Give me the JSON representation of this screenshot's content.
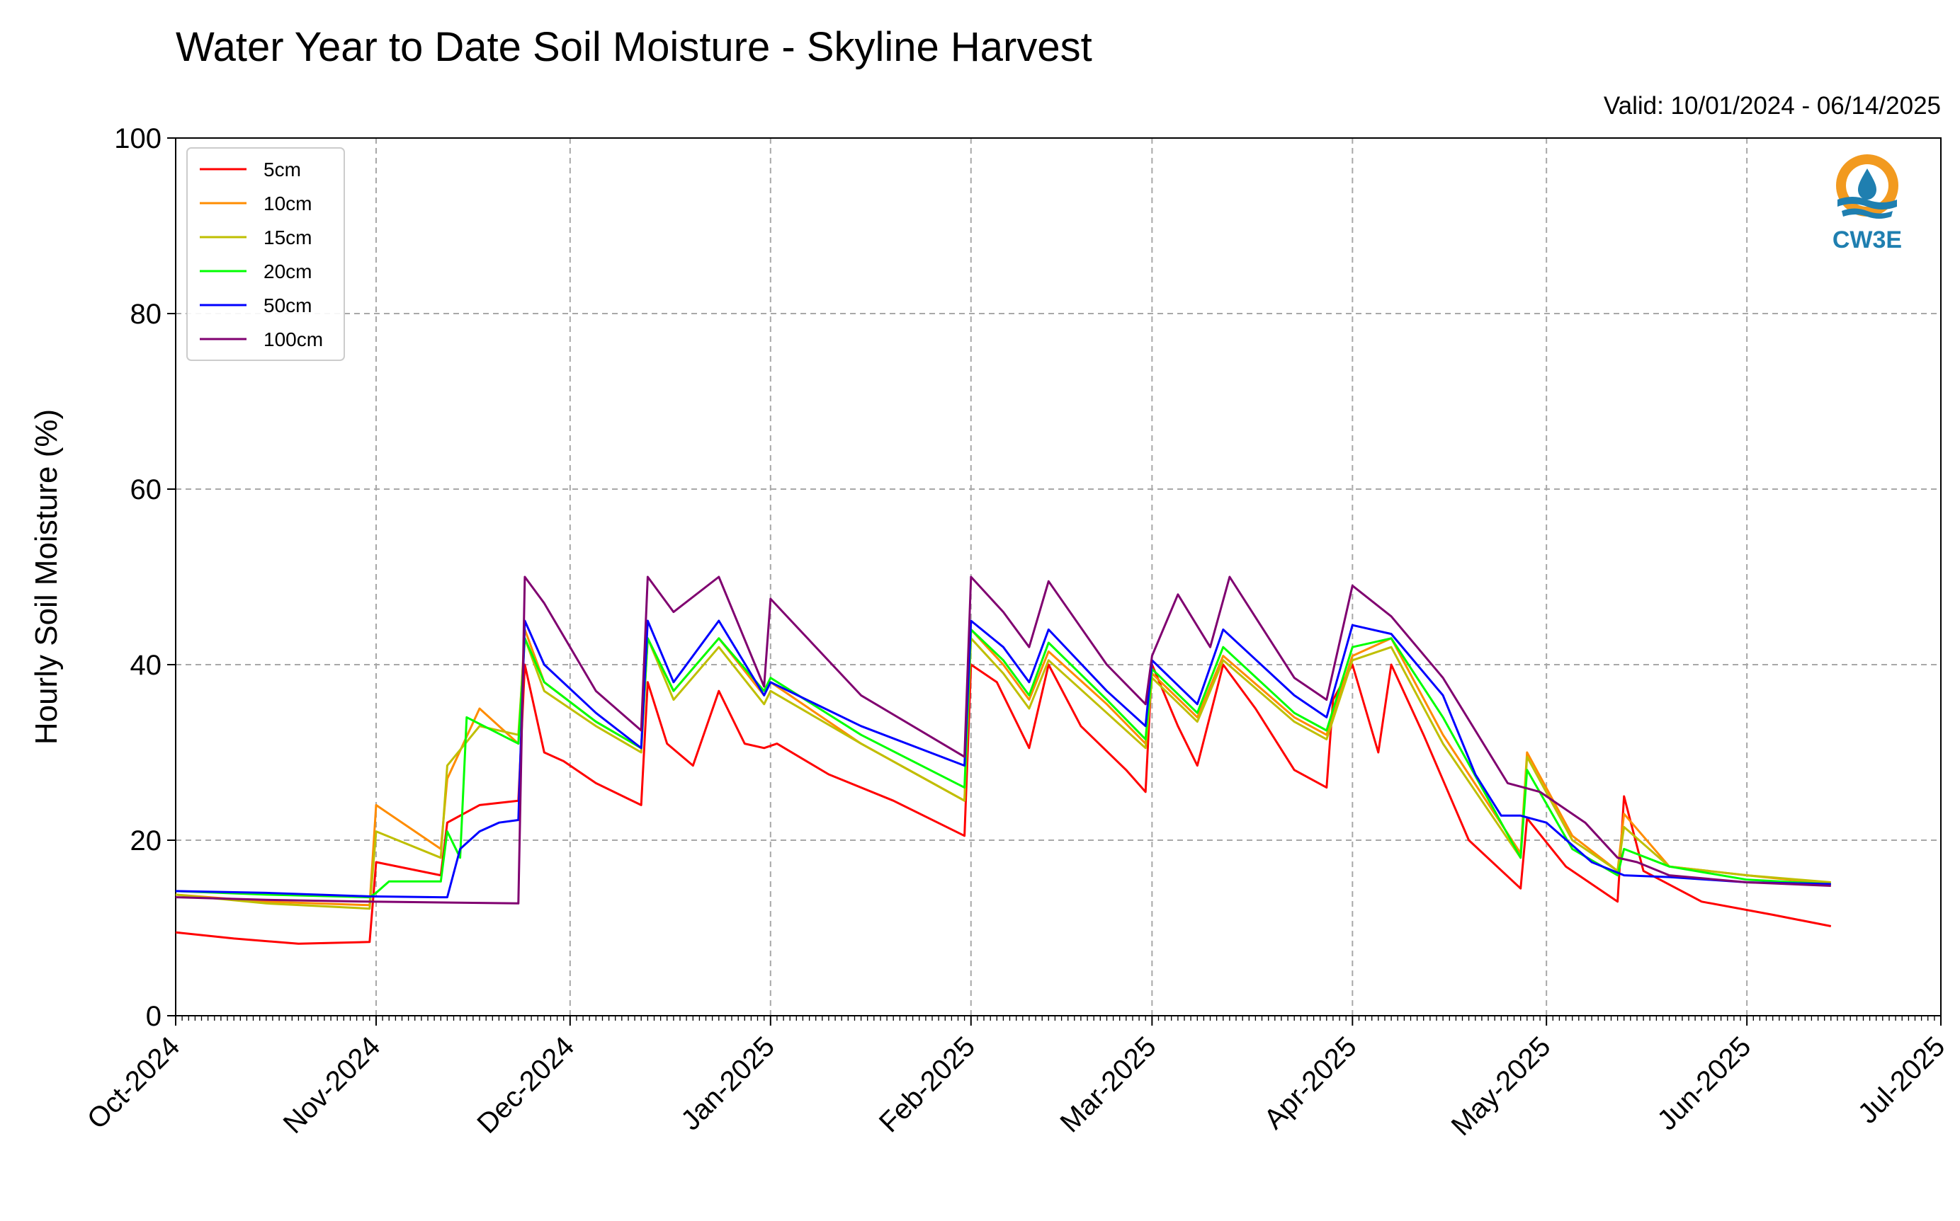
{
  "chart_data": {
    "type": "line",
    "title": "Water Year to Date Soil Moisture - Skyline Harvest",
    "subtitle": "Valid: 10/01/2024 - 06/14/2025",
    "xlabel": "",
    "ylabel": "Hourly Soil Moisture (%)",
    "ylim": [
      0,
      100
    ],
    "xlim": [
      "2024-10-01",
      "2025-07-01"
    ],
    "yticks": [
      0,
      20,
      40,
      60,
      80,
      100
    ],
    "xticks": [
      {
        "date": "2024-10-01",
        "label": "Oct-2024"
      },
      {
        "date": "2024-11-01",
        "label": "Nov-2024"
      },
      {
        "date": "2024-12-01",
        "label": "Dec-2024"
      },
      {
        "date": "2025-01-01",
        "label": "Jan-2025"
      },
      {
        "date": "2025-02-01",
        "label": "Feb-2025"
      },
      {
        "date": "2025-03-01",
        "label": "Mar-2025"
      },
      {
        "date": "2025-04-01",
        "label": "Apr-2025"
      },
      {
        "date": "2025-05-01",
        "label": "May-2025"
      },
      {
        "date": "2025-06-01",
        "label": "Jun-2025"
      },
      {
        "date": "2025-07-01",
        "label": "Jul-2025"
      }
    ],
    "grid": true,
    "legend": "top-left",
    "logo": "CW3E",
    "series": [
      {
        "name": "5cm",
        "color": "#ff0000",
        "points": [
          [
            "2024-10-01",
            9.5
          ],
          [
            "2024-10-10",
            8.8
          ],
          [
            "2024-10-20",
            8.2
          ],
          [
            "2024-10-31",
            8.4
          ],
          [
            "2024-11-01",
            17.5
          ],
          [
            "2024-11-11",
            16.0
          ],
          [
            "2024-11-12",
            22.0
          ],
          [
            "2024-11-17",
            24.0
          ],
          [
            "2024-11-23",
            24.5
          ],
          [
            "2024-11-24",
            40.0
          ],
          [
            "2024-11-27",
            30.0
          ],
          [
            "2024-11-30",
            29.0
          ],
          [
            "2024-12-05",
            26.5
          ],
          [
            "2024-12-12",
            24.0
          ],
          [
            "2024-12-13",
            38.0
          ],
          [
            "2024-12-16",
            31.0
          ],
          [
            "2024-12-20",
            28.5
          ],
          [
            "2024-12-24",
            37.0
          ],
          [
            "2024-12-28",
            31.0
          ],
          [
            "2024-12-31",
            30.5
          ],
          [
            "2025-01-02",
            31.0
          ],
          [
            "2025-01-10",
            27.5
          ],
          [
            "2025-01-20",
            24.5
          ],
          [
            "2025-01-31",
            20.5
          ],
          [
            "2025-02-01",
            40.0
          ],
          [
            "2025-02-05",
            38.0
          ],
          [
            "2025-02-10",
            30.5
          ],
          [
            "2025-02-13",
            40.0
          ],
          [
            "2025-02-18",
            33.0
          ],
          [
            "2025-02-25",
            28.0
          ],
          [
            "2025-02-28",
            25.5
          ],
          [
            "2025-03-01",
            40.0
          ],
          [
            "2025-03-05",
            33.0
          ],
          [
            "2025-03-08",
            28.5
          ],
          [
            "2025-03-12",
            40.0
          ],
          [
            "2025-03-17",
            35.0
          ],
          [
            "2025-03-23",
            28.0
          ],
          [
            "2025-03-28",
            26.0
          ],
          [
            "2025-03-29",
            36.0
          ],
          [
            "2025-04-01",
            40.0
          ],
          [
            "2025-04-05",
            30.0
          ],
          [
            "2025-04-07",
            40.0
          ],
          [
            "2025-04-12",
            32.0
          ],
          [
            "2025-04-19",
            20.0
          ],
          [
            "2025-04-27",
            14.5
          ],
          [
            "2025-04-28",
            22.5
          ],
          [
            "2025-05-04",
            17.0
          ],
          [
            "2025-05-12",
            13.0
          ],
          [
            "2025-05-13",
            25.0
          ],
          [
            "2025-05-16",
            16.5
          ],
          [
            "2025-05-25",
            13.0
          ],
          [
            "2025-06-05",
            11.5
          ],
          [
            "2025-06-14",
            10.2
          ]
        ]
      },
      {
        "name": "10cm",
        "color": "#ff8c00",
        "points": [
          [
            "2024-10-01",
            13.8
          ],
          [
            "2024-10-15",
            13.0
          ],
          [
            "2024-10-31",
            12.6
          ],
          [
            "2024-11-01",
            24.0
          ],
          [
            "2024-11-11",
            19.0
          ],
          [
            "2024-11-12",
            27.0
          ],
          [
            "2024-11-17",
            35.0
          ],
          [
            "2024-11-23",
            31.0
          ],
          [
            "2024-11-24",
            44.0
          ],
          [
            "2024-11-27",
            38.0
          ],
          [
            "2024-12-05",
            33.5
          ],
          [
            "2024-12-12",
            30.5
          ],
          [
            "2024-12-13",
            43.0
          ],
          [
            "2024-12-17",
            37.0
          ],
          [
            "2024-12-24",
            43.0
          ],
          [
            "2024-12-31",
            36.5
          ],
          [
            "2025-01-01",
            38.0
          ],
          [
            "2025-01-15",
            31.0
          ],
          [
            "2025-01-31",
            24.5
          ],
          [
            "2025-02-01",
            44.0
          ],
          [
            "2025-02-06",
            40.0
          ],
          [
            "2025-02-10",
            36.0
          ],
          [
            "2025-02-13",
            41.5
          ],
          [
            "2025-02-22",
            35.5
          ],
          [
            "2025-02-28",
            31.0
          ],
          [
            "2025-03-01",
            39.0
          ],
          [
            "2025-03-08",
            34.0
          ],
          [
            "2025-03-12",
            41.0
          ],
          [
            "2025-03-23",
            34.0
          ],
          [
            "2025-03-28",
            32.0
          ],
          [
            "2025-04-01",
            41.0
          ],
          [
            "2025-04-07",
            43.0
          ],
          [
            "2025-04-15",
            32.0
          ],
          [
            "2025-04-27",
            18.5
          ],
          [
            "2025-04-28",
            30.0
          ],
          [
            "2025-05-05",
            20.5
          ],
          [
            "2025-05-12",
            16.5
          ],
          [
            "2025-05-13",
            23.0
          ],
          [
            "2025-05-20",
            17.0
          ],
          [
            "2025-06-01",
            16.0
          ],
          [
            "2025-06-14",
            15.0
          ]
        ]
      },
      {
        "name": "15cm",
        "color": "#bfbf00",
        "points": [
          [
            "2024-10-01",
            13.8
          ],
          [
            "2024-10-15",
            12.8
          ],
          [
            "2024-10-31",
            12.2
          ],
          [
            "2024-11-01",
            21.0
          ],
          [
            "2024-11-11",
            18.0
          ],
          [
            "2024-11-12",
            28.5
          ],
          [
            "2024-11-17",
            33.0
          ],
          [
            "2024-11-23",
            32.0
          ],
          [
            "2024-11-24",
            43.0
          ],
          [
            "2024-11-27",
            37.0
          ],
          [
            "2024-12-05",
            33.0
          ],
          [
            "2024-12-12",
            30.0
          ],
          [
            "2024-12-13",
            43.0
          ],
          [
            "2024-12-17",
            36.0
          ],
          [
            "2024-12-24",
            42.0
          ],
          [
            "2024-12-31",
            35.5
          ],
          [
            "2025-01-01",
            37.0
          ],
          [
            "2025-01-15",
            31.0
          ],
          [
            "2025-01-31",
            24.5
          ],
          [
            "2025-02-01",
            43.0
          ],
          [
            "2025-02-06",
            39.0
          ],
          [
            "2025-02-10",
            35.0
          ],
          [
            "2025-02-13",
            40.5
          ],
          [
            "2025-02-22",
            34.5
          ],
          [
            "2025-02-28",
            30.5
          ],
          [
            "2025-03-01",
            38.5
          ],
          [
            "2025-03-08",
            33.5
          ],
          [
            "2025-03-12",
            40.5
          ],
          [
            "2025-03-23",
            33.5
          ],
          [
            "2025-03-28",
            31.5
          ],
          [
            "2025-04-01",
            40.5
          ],
          [
            "2025-04-07",
            42.0
          ],
          [
            "2025-04-15",
            31.0
          ],
          [
            "2025-04-27",
            18.0
          ],
          [
            "2025-04-28",
            29.5
          ],
          [
            "2025-05-05",
            20.0
          ],
          [
            "2025-05-12",
            16.5
          ],
          [
            "2025-05-13",
            21.5
          ],
          [
            "2025-05-20",
            17.0
          ],
          [
            "2025-06-01",
            16.0
          ],
          [
            "2025-06-14",
            15.2
          ]
        ]
      },
      {
        "name": "20cm",
        "color": "#00ff00",
        "points": [
          [
            "2024-10-01",
            14.2
          ],
          [
            "2024-10-15",
            13.8
          ],
          [
            "2024-10-31",
            13.5
          ],
          [
            "2024-11-01",
            14.0
          ],
          [
            "2024-11-03",
            15.3
          ],
          [
            "2024-11-11",
            15.3
          ],
          [
            "2024-11-12",
            21.0
          ],
          [
            "2024-11-14",
            18.0
          ],
          [
            "2024-11-15",
            34.0
          ],
          [
            "2024-11-23",
            31.0
          ],
          [
            "2024-11-24",
            43.0
          ],
          [
            "2024-11-27",
            38.0
          ],
          [
            "2024-12-05",
            33.5
          ],
          [
            "2024-12-12",
            30.5
          ],
          [
            "2024-12-13",
            43.0
          ],
          [
            "2024-12-17",
            37.0
          ],
          [
            "2024-12-24",
            43.0
          ],
          [
            "2024-12-31",
            37.0
          ],
          [
            "2025-01-01",
            38.5
          ],
          [
            "2025-01-15",
            32.0
          ],
          [
            "2025-01-31",
            26.0
          ],
          [
            "2025-02-01",
            44.0
          ],
          [
            "2025-02-06",
            40.5
          ],
          [
            "2025-02-10",
            36.5
          ],
          [
            "2025-02-13",
            42.5
          ],
          [
            "2025-02-22",
            36.0
          ],
          [
            "2025-02-28",
            31.5
          ],
          [
            "2025-03-01",
            39.5
          ],
          [
            "2025-03-08",
            34.5
          ],
          [
            "2025-03-12",
            42.0
          ],
          [
            "2025-03-23",
            34.5
          ],
          [
            "2025-03-28",
            32.5
          ],
          [
            "2025-04-01",
            42.0
          ],
          [
            "2025-04-07",
            43.0
          ],
          [
            "2025-04-15",
            34.0
          ],
          [
            "2025-04-27",
            18.0
          ],
          [
            "2025-04-28",
            28.0
          ],
          [
            "2025-05-05",
            19.0
          ],
          [
            "2025-05-12",
            16.0
          ],
          [
            "2025-05-13",
            19.0
          ],
          [
            "2025-05-20",
            17.0
          ],
          [
            "2025-06-01",
            15.5
          ],
          [
            "2025-06-14",
            15.0
          ]
        ]
      },
      {
        "name": "50cm",
        "color": "#0000ff",
        "points": [
          [
            "2024-10-01",
            14.2
          ],
          [
            "2024-10-15",
            14.0
          ],
          [
            "2024-10-31",
            13.6
          ],
          [
            "2024-11-11",
            13.5
          ],
          [
            "2024-11-12",
            13.5
          ],
          [
            "2024-11-14",
            19.0
          ],
          [
            "2024-11-17",
            21.0
          ],
          [
            "2024-11-20",
            22.0
          ],
          [
            "2024-11-23",
            22.3
          ],
          [
            "2024-11-24",
            45.0
          ],
          [
            "2024-11-27",
            40.0
          ],
          [
            "2024-12-05",
            34.5
          ],
          [
            "2024-12-12",
            30.5
          ],
          [
            "2024-12-13",
            45.0
          ],
          [
            "2024-12-17",
            38.0
          ],
          [
            "2024-12-24",
            45.0
          ],
          [
            "2024-12-31",
            36.5
          ],
          [
            "2025-01-01",
            38.0
          ],
          [
            "2025-01-15",
            33.0
          ],
          [
            "2025-01-31",
            28.5
          ],
          [
            "2025-02-01",
            45.0
          ],
          [
            "2025-02-06",
            42.0
          ],
          [
            "2025-02-10",
            38.0
          ],
          [
            "2025-02-13",
            44.0
          ],
          [
            "2025-02-22",
            37.0
          ],
          [
            "2025-02-28",
            33.0
          ],
          [
            "2025-03-01",
            40.5
          ],
          [
            "2025-03-08",
            35.5
          ],
          [
            "2025-03-12",
            44.0
          ],
          [
            "2025-03-23",
            36.5
          ],
          [
            "2025-03-28",
            34.0
          ],
          [
            "2025-04-01",
            44.5
          ],
          [
            "2025-04-07",
            43.5
          ],
          [
            "2025-04-15",
            36.5
          ],
          [
            "2025-04-20",
            27.5
          ],
          [
            "2025-04-24",
            22.8
          ],
          [
            "2025-04-27",
            22.8
          ],
          [
            "2025-05-01",
            22.0
          ],
          [
            "2025-05-08",
            17.5
          ],
          [
            "2025-05-13",
            16.0
          ],
          [
            "2025-05-20",
            15.8
          ],
          [
            "2025-06-01",
            15.2
          ],
          [
            "2025-06-14",
            15.0
          ]
        ]
      },
      {
        "name": "100cm",
        "color": "#800070",
        "points": [
          [
            "2024-10-01",
            13.5
          ],
          [
            "2024-10-15",
            13.2
          ],
          [
            "2024-10-31",
            13.0
          ],
          [
            "2024-11-23",
            12.8
          ],
          [
            "2024-11-24",
            50.0
          ],
          [
            "2024-11-27",
            47.0
          ],
          [
            "2024-12-05",
            37.0
          ],
          [
            "2024-12-12",
            32.5
          ],
          [
            "2024-12-13",
            50.0
          ],
          [
            "2024-12-17",
            46.0
          ],
          [
            "2024-12-24",
            50.0
          ],
          [
            "2024-12-31",
            37.5
          ],
          [
            "2025-01-01",
            47.5
          ],
          [
            "2025-01-15",
            36.5
          ],
          [
            "2025-01-31",
            29.5
          ],
          [
            "2025-02-01",
            50.0
          ],
          [
            "2025-02-06",
            46.0
          ],
          [
            "2025-02-10",
            42.0
          ],
          [
            "2025-02-13",
            49.5
          ],
          [
            "2025-02-22",
            40.0
          ],
          [
            "2025-02-28",
            35.5
          ],
          [
            "2025-03-01",
            41.0
          ],
          [
            "2025-03-05",
            48.0
          ],
          [
            "2025-03-10",
            42.0
          ],
          [
            "2025-03-13",
            50.0
          ],
          [
            "2025-03-23",
            38.5
          ],
          [
            "2025-03-28",
            36.0
          ],
          [
            "2025-04-01",
            49.0
          ],
          [
            "2025-04-07",
            45.5
          ],
          [
            "2025-04-15",
            38.5
          ],
          [
            "2025-04-25",
            26.5
          ],
          [
            "2025-04-30",
            25.5
          ],
          [
            "2025-05-07",
            22.0
          ],
          [
            "2025-05-12",
            18.0
          ],
          [
            "2025-05-15",
            17.5
          ],
          [
            "2025-05-20",
            16.0
          ],
          [
            "2025-06-01",
            15.2
          ],
          [
            "2025-06-14",
            14.8
          ]
        ]
      }
    ]
  }
}
